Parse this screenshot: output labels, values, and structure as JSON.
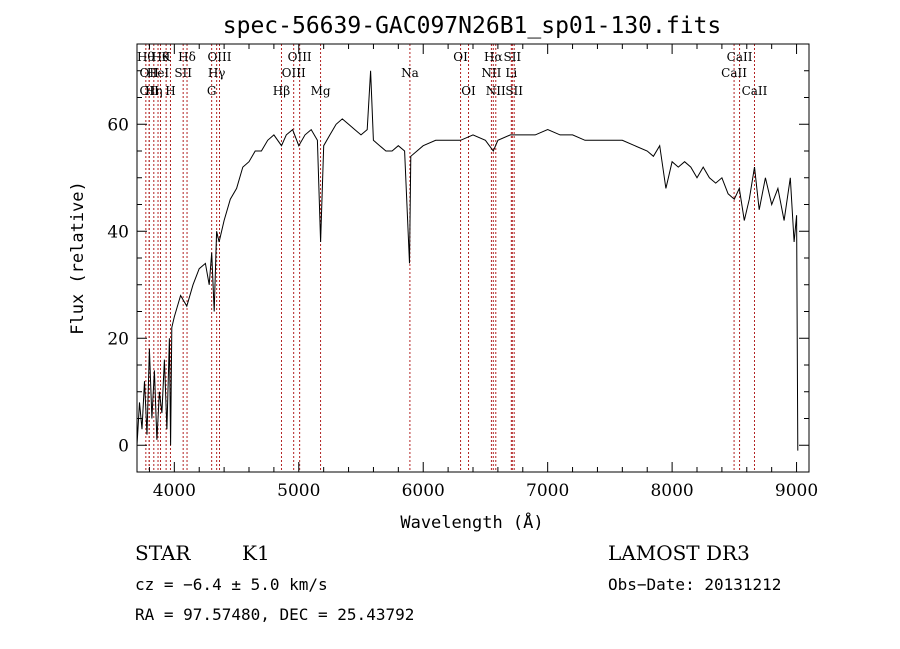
{
  "chart_data": {
    "type": "line",
    "title": "spec-56639-GAC097N26B1_sp01-130.fits",
    "xlabel": "Wavelength (Å)",
    "ylabel": "Flux (relative)",
    "xlim": [
      3700,
      9100
    ],
    "ylim": [
      -5,
      75
    ],
    "xticks": [
      4000,
      5000,
      6000,
      7000,
      8000,
      9000
    ],
    "yticks": [
      0,
      20,
      40,
      60
    ],
    "xtick_labels": [
      "4000",
      "5000",
      "6000",
      "7000",
      "8000",
      "9000"
    ],
    "ytick_labels": [
      "0",
      "20",
      "40",
      "60"
    ],
    "grid": false,
    "line_color": "#000000",
    "marker_color": "#b22222",
    "spectrum": {
      "x": [
        3700,
        3720,
        3740,
        3760,
        3780,
        3800,
        3820,
        3840,
        3860,
        3880,
        3900,
        3920,
        3940,
        3960,
        3970,
        3980,
        4000,
        4050,
        4100,
        4150,
        4200,
        4250,
        4280,
        4300,
        4320,
        4340,
        4360,
        4400,
        4450,
        4500,
        4550,
        4600,
        4650,
        4700,
        4750,
        4800,
        4861,
        4900,
        4950,
        5000,
        5050,
        5100,
        5150,
        5175,
        5200,
        5250,
        5300,
        5350,
        5400,
        5450,
        5500,
        5550,
        5577,
        5600,
        5650,
        5700,
        5750,
        5800,
        5850,
        5890,
        5900,
        5950,
        6000,
        6100,
        6200,
        6300,
        6400,
        6500,
        6563,
        6600,
        6700,
        6800,
        6900,
        7000,
        7100,
        7200,
        7300,
        7400,
        7500,
        7600,
        7700,
        7800,
        7850,
        7900,
        7950,
        8000,
        8050,
        8100,
        8150,
        8200,
        8250,
        8300,
        8350,
        8400,
        8450,
        8500,
        8540,
        8580,
        8620,
        8662,
        8700,
        8750,
        8800,
        8850,
        8900,
        8950,
        8980,
        9000,
        9010
      ],
      "y": [
        0,
        8,
        3,
        12,
        2,
        18,
        5,
        14,
        1,
        10,
        6,
        16,
        3,
        20,
        0,
        22,
        24,
        28,
        26,
        30,
        33,
        34,
        30,
        36,
        25,
        40,
        38,
        42,
        46,
        48,
        52,
        53,
        55,
        55,
        57,
        58,
        56,
        58,
        59,
        56,
        58,
        59,
        57,
        38,
        56,
        58,
        60,
        61,
        60,
        59,
        58,
        59,
        70,
        57,
        56,
        55,
        55,
        56,
        55,
        34,
        54,
        55,
        56,
        57,
        57,
        57,
        58,
        57,
        55,
        57,
        58,
        58,
        58,
        59,
        58,
        58,
        57,
        57,
        57,
        57,
        56,
        55,
        54,
        56,
        48,
        53,
        52,
        53,
        52,
        50,
        52,
        50,
        49,
        50,
        47,
        46,
        48,
        42,
        46,
        52,
        44,
        50,
        45,
        48,
        42,
        50,
        38,
        43,
        -1
      ]
    },
    "lines": [
      {
        "x": 3771,
        "label": "Hθ",
        "row": 1
      },
      {
        "x": 3798,
        "label": "OII",
        "row": 2
      },
      {
        "x": 3798,
        "label": "OII",
        "row": 3
      },
      {
        "x": 3835,
        "label": "Hη",
        "row": 3
      },
      {
        "x": 3869,
        "label": "HeI",
        "row": 2
      },
      {
        "x": 3889,
        "label": "Hθ",
        "row": 1
      },
      {
        "x": 3934,
        "label": "K",
        "row": 1
      },
      {
        "x": 3969,
        "label": "H",
        "row": 3
      },
      {
        "x": 4071,
        "label": "SII",
        "row": 2
      },
      {
        "x": 4102,
        "label": "Hδ",
        "row": 1
      },
      {
        "x": 4300,
        "label": "G",
        "row": 3
      },
      {
        "x": 4340,
        "label": "Hγ",
        "row": 2
      },
      {
        "x": 4363,
        "label": "OIII",
        "row": 1
      },
      {
        "x": 4861,
        "label": "Hβ",
        "row": 3
      },
      {
        "x": 4959,
        "label": "OIII",
        "row": 2
      },
      {
        "x": 5007,
        "label": "OIII",
        "row": 1
      },
      {
        "x": 5175,
        "label": "Mg",
        "row": 3
      },
      {
        "x": 5893,
        "label": "Na",
        "row": 2
      },
      {
        "x": 6300,
        "label": "OI",
        "row": 1
      },
      {
        "x": 6364,
        "label": "OI",
        "row": 3
      },
      {
        "x": 6548,
        "label": "NII",
        "row": 2
      },
      {
        "x": 6563,
        "label": "Hα",
        "row": 1
      },
      {
        "x": 6583,
        "label": "NII",
        "row": 3
      },
      {
        "x": 6708,
        "label": "Li",
        "row": 2
      },
      {
        "x": 6716,
        "label": "SII",
        "row": 1
      },
      {
        "x": 6731,
        "label": "SII",
        "row": 3
      },
      {
        "x": 8498,
        "label": "CaII",
        "row": 2
      },
      {
        "x": 8542,
        "label": "CaII",
        "row": 1
      },
      {
        "x": 8662,
        "label": "CaII",
        "row": 3
      }
    ]
  },
  "info": {
    "class": "STAR",
    "subclass": "K1",
    "survey": "LAMOST DR3",
    "cz": "cz = −6.4 ± 5.0 km/s",
    "obs_date": "Obs−Date: 20131212",
    "coords": "RA =  97.57480, DEC =  25.43792"
  }
}
